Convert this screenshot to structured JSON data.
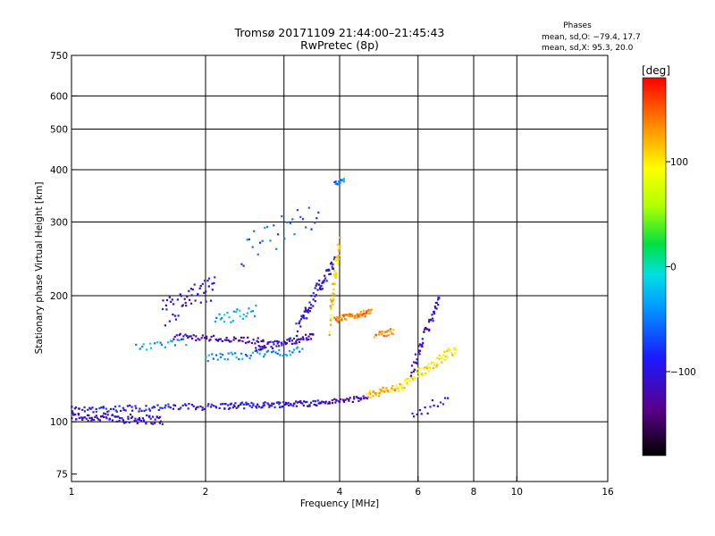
{
  "chart_data": {
    "type": "scatter",
    "title": "Tromsø 20171109 21:44:00–21:45:43",
    "subtitle": "RwPretec (8p)",
    "xlabel": "Frequency [MHz]",
    "ylabel": "Stationary phase Virtual Height [km]",
    "x_scale": "log",
    "y_scale": "log",
    "xlim": [
      1,
      16
    ],
    "ylim": [
      72,
      750
    ],
    "x_ticks": [
      1,
      2,
      4,
      6,
      8,
      10,
      16
    ],
    "x_tick_labels": [
      "1",
      "2",
      "4",
      "6",
      "8",
      "10",
      "16"
    ],
    "x_grid": [
      1,
      2,
      3,
      4,
      6,
      8,
      10
    ],
    "y_ticks": [
      75,
      100,
      200,
      300,
      400,
      500,
      600,
      750
    ],
    "y_tick_labels": [
      "75",
      "100",
      "200",
      "300",
      "400",
      "500",
      "600",
      "750"
    ],
    "y_grid": [
      100,
      200,
      300,
      400,
      500,
      600
    ],
    "grid": true,
    "stats": {
      "heading": "Phases",
      "line_o": "mean, sd,O: −79.4, 17.7",
      "line_x": "mean, sd,X:  95.3, 20.0"
    },
    "colorbar": {
      "label": "[deg]",
      "range": [
        -180,
        180
      ],
      "ticks": [
        -100,
        0,
        100
      ],
      "tick_labels": [
        "−100",
        "0",
        "100"
      ]
    },
    "traces": [
      {
        "x_start": 1.0,
        "x_end": 1.6,
        "y_start": 103,
        "y_end": 101,
        "phase": -110,
        "count": 90,
        "spread": 2.5
      },
      {
        "x_start": 1.0,
        "x_end": 2.2,
        "y_start": 107,
        "y_end": 109,
        "phase": -90,
        "count": 90,
        "spread": 2.0
      },
      {
        "x_start": 2.2,
        "x_end": 3.6,
        "y_start": 109,
        "y_end": 111,
        "phase": -100,
        "count": 90,
        "spread": 1.8
      },
      {
        "x_start": 3.6,
        "x_end": 4.6,
        "y_start": 111,
        "y_end": 114,
        "phase": -120,
        "count": 40,
        "spread": 1.5
      },
      {
        "x_start": 4.6,
        "x_end": 5.5,
        "y_start": 116,
        "y_end": 121,
        "phase": 120,
        "count": 45,
        "spread": 2.5
      },
      {
        "x_start": 5.5,
        "x_end": 7.3,
        "y_start": 121,
        "y_end": 150,
        "phase": 100,
        "count": 70,
        "spread": 4.0
      },
      {
        "x_start": 5.8,
        "x_end": 6.7,
        "y_start": 130,
        "y_end": 195,
        "phase": -110,
        "count": 50,
        "spread": 5.0
      },
      {
        "x_start": 1.7,
        "x_end": 2.7,
        "y_start": 160,
        "y_end": 156,
        "phase": -120,
        "count": 60,
        "spread": 2.5
      },
      {
        "x_start": 2.0,
        "x_end": 3.3,
        "y_start": 142,
        "y_end": 148,
        "phase": -40,
        "count": 50,
        "spread": 3.0
      },
      {
        "x_start": 2.6,
        "x_end": 3.5,
        "y_start": 150,
        "y_end": 160,
        "phase": -110,
        "count": 60,
        "spread": 3.0
      },
      {
        "x_start": 3.2,
        "x_end": 3.9,
        "y_start": 165,
        "y_end": 240,
        "phase": -100,
        "count": 70,
        "spread": 8.0
      },
      {
        "x_start": 3.8,
        "x_end": 4.0,
        "y_start": 170,
        "y_end": 270,
        "phase": 110,
        "count": 50,
        "spread": 10.0
      },
      {
        "x_start": 3.9,
        "x_end": 4.7,
        "y_start": 175,
        "y_end": 183,
        "phase": 135,
        "count": 55,
        "spread": 3.0
      },
      {
        "x_start": 1.6,
        "x_end": 2.1,
        "y_start": 180,
        "y_end": 210,
        "phase": -100,
        "count": 50,
        "spread": 15.0
      },
      {
        "x_start": 2.1,
        "x_end": 2.6,
        "y_start": 175,
        "y_end": 185,
        "phase": -30,
        "count": 25,
        "spread": 6.0
      },
      {
        "x_start": 1.4,
        "x_end": 1.8,
        "y_start": 150,
        "y_end": 155,
        "phase": -30,
        "count": 20,
        "spread": 3.0
      },
      {
        "x_start": 2.4,
        "x_end": 3.6,
        "y_start": 250,
        "y_end": 320,
        "phase": -60,
        "count": 30,
        "spread": 25.0
      },
      {
        "x_start": 3.9,
        "x_end": 4.1,
        "y_start": 370,
        "y_end": 380,
        "phase": -50,
        "count": 15,
        "spread": 4.0
      },
      {
        "x_start": 4.8,
        "x_end": 5.3,
        "y_start": 160,
        "y_end": 165,
        "phase": 135,
        "count": 20,
        "spread": 3.0
      },
      {
        "x_start": 5.8,
        "x_end": 7.0,
        "y_start": 105,
        "y_end": 112,
        "phase": -100,
        "count": 15,
        "spread": 4.0
      }
    ]
  }
}
